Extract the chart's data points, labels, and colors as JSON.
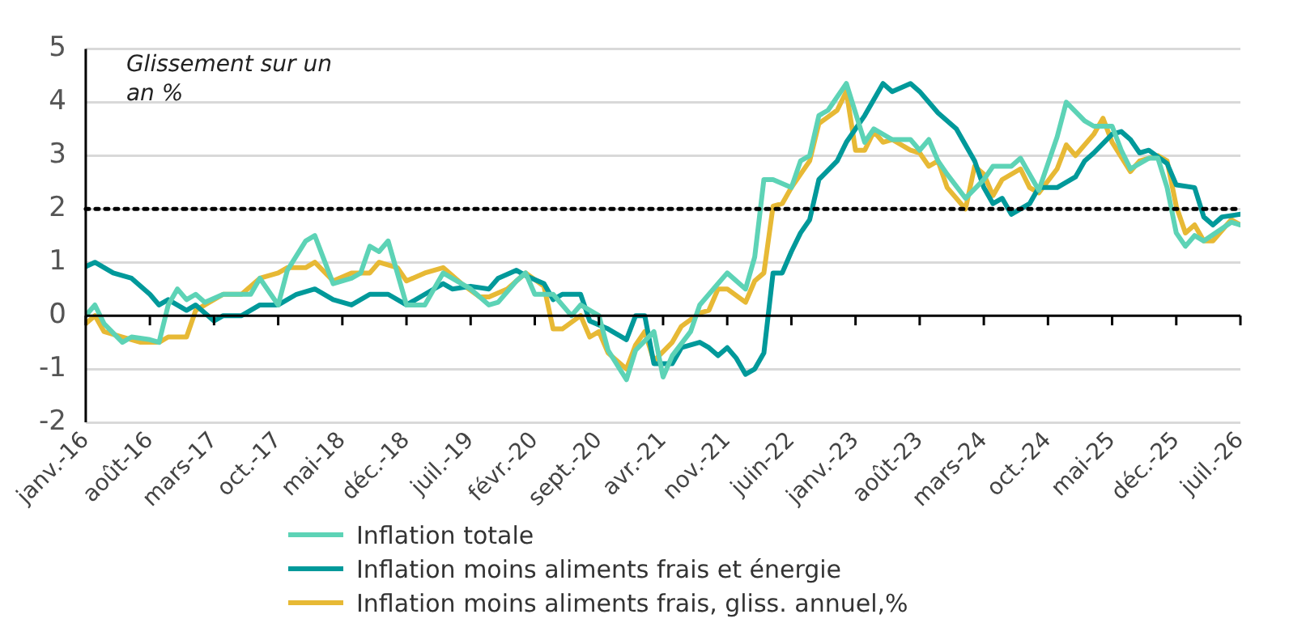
{
  "chart_data": {
    "type": "line",
    "ylabel": "Glissement sur un an %",
    "xlim": [
      "2016-01",
      "2026-07"
    ],
    "xticks": [
      {
        "value": "2016-01",
        "label": "janv.-16"
      },
      {
        "value": "2016-08",
        "label": "août-16"
      },
      {
        "value": "2017-03",
        "label": "mars-17"
      },
      {
        "value": "2017-10",
        "label": "oct.-17"
      },
      {
        "value": "2018-05",
        "label": "mai-18"
      },
      {
        "value": "2018-12",
        "label": "déc.-18"
      },
      {
        "value": "2019-07",
        "label": "juil.-19"
      },
      {
        "value": "2020-02",
        "label": "févr.-20"
      },
      {
        "value": "2020-09",
        "label": "sept.-20"
      },
      {
        "value": "2021-04",
        "label": "avr.-21"
      },
      {
        "value": "2021-11",
        "label": "nov.-21"
      },
      {
        "value": "2022-06",
        "label": "juin-22"
      },
      {
        "value": "2023-01",
        "label": "janv.-23"
      },
      {
        "value": "2023-08",
        "label": "août-23"
      },
      {
        "value": "2024-03",
        "label": "mars-24"
      },
      {
        "value": "2024-10",
        "label": "oct.-24"
      },
      {
        "value": "2025-05",
        "label": "mai-25"
      },
      {
        "value": "2025-12",
        "label": "déc.-25"
      },
      {
        "value": "2026-07",
        "label": "juil.-26"
      }
    ],
    "ylim": [
      -2,
      5
    ],
    "yticks": [
      -2,
      -1,
      0,
      1,
      2,
      3,
      4,
      5
    ],
    "grid": "y",
    "legend": "bottom",
    "marker": "none",
    "line_style": "solid",
    "ref_lines": [
      {
        "axis": "y",
        "value": 2,
        "color": "#000000",
        "line_style": "dotted"
      }
    ],
    "series": [
      {
        "name": "Inflation totale",
        "color": "#5dd3b6",
        "x": [
          "2016-01",
          "2016-02",
          "2016-03",
          "2016-05",
          "2016-06",
          "2016-08",
          "2016-09",
          "2016-10",
          "2016-11",
          "2016-12",
          "2017-01",
          "2017-02",
          "2017-04",
          "2017-07",
          "2017-08",
          "2017-10",
          "2017-11",
          "2018-01",
          "2018-02",
          "2018-04",
          "2018-06",
          "2018-07",
          "2018-08",
          "2018-09",
          "2018-10",
          "2018-11",
          "2018-12",
          "2019-02",
          "2019-04",
          "2019-06",
          "2019-07",
          "2019-09",
          "2019-10",
          "2019-12",
          "2020-01",
          "2020-02",
          "2020-04",
          "2020-06",
          "2020-07",
          "2020-09",
          "2020-10",
          "2020-12",
          "2021-01",
          "2021-03",
          "2021-04",
          "2021-05",
          "2021-07",
          "2021-08",
          "2021-10",
          "2021-11",
          "2022-01",
          "2022-02",
          "2022-03",
          "2022-04",
          "2022-06",
          "2022-07",
          "2022-08",
          "2022-09",
          "2022-10",
          "2022-12",
          "2023-02",
          "2023-03",
          "2023-05",
          "2023-07",
          "2023-08",
          "2023-09",
          "2023-10",
          "2023-11",
          "2024-01",
          "2024-03",
          "2024-04",
          "2024-06",
          "2024-07",
          "2024-09",
          "2024-11",
          "2024-12",
          "2025-02",
          "2025-03",
          "2025-05",
          "2025-06",
          "2025-07",
          "2025-09",
          "2025-10",
          "2025-11",
          "2025-12",
          "2026-01",
          "2026-02",
          "2026-03",
          "2026-06",
          "2026-07"
        ],
        "values": [
          0,
          0.2,
          -0.15,
          -0.5,
          -0.4,
          -0.45,
          -0.5,
          0.2,
          0.5,
          0.3,
          0.4,
          0.25,
          0.4,
          0.4,
          0.7,
          0.2,
          0.85,
          1.4,
          1.5,
          0.6,
          0.7,
          0.8,
          1.3,
          1.2,
          1.4,
          0.8,
          0.2,
          0.2,
          0.8,
          0.6,
          0.5,
          0.2,
          0.25,
          0.65,
          0.8,
          0.4,
          0.4,
          0,
          0.2,
          0,
          -0.65,
          -1.2,
          -0.65,
          -0.3,
          -1.15,
          -0.75,
          -0.3,
          0.2,
          0.6,
          0.8,
          0.5,
          1.1,
          2.55,
          2.55,
          2.4,
          2.9,
          3.0,
          3.75,
          3.85,
          4.35,
          3.25,
          3.5,
          3.3,
          3.3,
          3.1,
          3.3,
          2.9,
          2.65,
          2.2,
          2.55,
          2.8,
          2.8,
          2.95,
          2.35,
          3.35,
          4.0,
          3.65,
          3.55,
          3.55,
          3.1,
          2.75,
          2.95,
          2.95,
          2.4,
          1.55,
          1.3,
          1.5,
          1.4,
          1.75,
          1.7
        ]
      },
      {
        "name": "Inflation moins aliments frais et énergie",
        "color": "#00999a",
        "x": [
          "2016-01",
          "2016-02",
          "2016-04",
          "2016-06",
          "2016-08",
          "2016-09",
          "2016-10",
          "2016-12",
          "2017-01",
          "2017-03",
          "2017-04",
          "2017-06",
          "2017-08",
          "2017-10",
          "2017-12",
          "2018-02",
          "2018-04",
          "2018-06",
          "2018-08",
          "2018-10",
          "2018-12",
          "2019-02",
          "2019-04",
          "2019-05",
          "2019-07",
          "2019-09",
          "2019-10",
          "2019-12",
          "2020-01",
          "2020-03",
          "2020-04",
          "2020-05",
          "2020-07",
          "2020-08",
          "2020-10",
          "2020-12",
          "2021-01",
          "2021-02",
          "2021-03",
          "2021-05",
          "2021-06",
          "2021-08",
          "2021-09",
          "2021-10",
          "2021-11",
          "2021-12",
          "2022-01",
          "2022-02",
          "2022-03",
          "2022-04",
          "2022-05",
          "2022-06",
          "2022-07",
          "2022-08",
          "2022-09",
          "2022-11",
          "2022-12",
          "2023-02",
          "2023-04",
          "2023-05",
          "2023-07",
          "2023-08",
          "2023-10",
          "2023-12",
          "2024-02",
          "2024-03",
          "2024-04",
          "2024-05",
          "2024-06",
          "2024-08",
          "2024-09",
          "2024-11",
          "2025-01",
          "2025-02",
          "2025-03",
          "2025-05",
          "2025-06",
          "2025-07",
          "2025-08",
          "2025-09",
          "2025-11",
          "2025-12",
          "2026-02",
          "2026-03",
          "2026-04",
          "2026-05",
          "2026-07"
        ],
        "values": [
          0.92,
          1.0,
          0.8,
          0.7,
          0.4,
          0.2,
          0.3,
          0.1,
          0.2,
          -0.1,
          0,
          0,
          0.2,
          0.2,
          0.4,
          0.5,
          0.3,
          0.2,
          0.4,
          0.4,
          0.2,
          0.4,
          0.6,
          0.5,
          0.55,
          0.5,
          0.7,
          0.85,
          0.75,
          0.6,
          0.3,
          0.4,
          0.4,
          -0.1,
          -0.25,
          -0.45,
          0,
          0,
          -0.9,
          -0.9,
          -0.6,
          -0.5,
          -0.6,
          -0.75,
          -0.6,
          -0.8,
          -1.1,
          -1.0,
          -0.7,
          0.8,
          0.8,
          1.2,
          1.55,
          1.8,
          2.55,
          2.9,
          3.25,
          3.75,
          4.35,
          4.2,
          4.35,
          4.2,
          3.8,
          3.5,
          2.9,
          2.4,
          2.1,
          2.2,
          1.9,
          2.1,
          2.4,
          2.4,
          2.6,
          2.9,
          3.05,
          3.4,
          3.45,
          3.3,
          3.05,
          3.1,
          2.85,
          2.45,
          2.4,
          1.85,
          1.7,
          1.85,
          1.9
        ]
      },
      {
        "name": "Inflation moins aliments frais, gliss. annuel,%",
        "color": "#e7b935",
        "x": [
          "2016-01",
          "2016-02",
          "2016-03",
          "2016-05",
          "2016-07",
          "2016-09",
          "2016-10",
          "2016-12",
          "2017-01",
          "2017-02",
          "2017-04",
          "2017-06",
          "2017-08",
          "2017-10",
          "2017-11",
          "2018-01",
          "2018-02",
          "2018-04",
          "2018-06",
          "2018-08",
          "2018-09",
          "2018-11",
          "2018-12",
          "2019-02",
          "2019-04",
          "2019-06",
          "2019-08",
          "2019-09",
          "2019-11",
          "2020-01",
          "2020-03",
          "2020-04",
          "2020-05",
          "2020-07",
          "2020-08",
          "2020-09",
          "2020-10",
          "2020-12",
          "2021-01",
          "2021-02",
          "2021-03",
          "2021-05",
          "2021-06",
          "2021-08",
          "2021-09",
          "2021-10",
          "2021-11",
          "2022-01",
          "2022-02",
          "2022-03",
          "2022-04",
          "2022-05",
          "2022-06",
          "2022-08",
          "2022-09",
          "2022-11",
          "2022-12",
          "2023-01",
          "2023-02",
          "2023-03",
          "2023-04",
          "2023-05",
          "2023-07",
          "2023-08",
          "2023-09",
          "2023-10",
          "2023-11",
          "2024-01",
          "2024-02",
          "2024-03",
          "2024-04",
          "2024-05",
          "2024-07",
          "2024-08",
          "2024-09",
          "2024-11",
          "2024-12",
          "2025-01",
          "2025-03",
          "2025-04",
          "2025-05",
          "2025-07",
          "2025-08",
          "2025-10",
          "2025-11",
          "2025-12",
          "2026-01",
          "2026-02",
          "2026-03",
          "2026-04",
          "2026-06",
          "2026-07"
        ],
        "values": [
          -0.15,
          0,
          -0.3,
          -0.4,
          -0.5,
          -0.5,
          -0.4,
          -0.4,
          0.1,
          0.2,
          0.4,
          0.4,
          0.7,
          0.8,
          0.9,
          0.9,
          1.0,
          0.65,
          0.8,
          0.8,
          1.0,
          0.9,
          0.65,
          0.8,
          0.9,
          0.6,
          0.35,
          0.35,
          0.5,
          0.8,
          0.55,
          -0.25,
          -0.25,
          0,
          -0.4,
          -0.3,
          -0.7,
          -1.0,
          -0.55,
          -0.3,
          -0.85,
          -0.5,
          -0.2,
          0.05,
          0.1,
          0.5,
          0.5,
          0.25,
          0.65,
          0.8,
          2.05,
          2.1,
          2.4,
          2.9,
          3.6,
          3.85,
          4.2,
          3.1,
          3.1,
          3.45,
          3.25,
          3.3,
          3.1,
          3.05,
          2.8,
          2.9,
          2.4,
          2.0,
          2.8,
          2.65,
          2.25,
          2.55,
          2.75,
          2.4,
          2.3,
          2.75,
          3.2,
          3.0,
          3.4,
          3.7,
          3.25,
          2.7,
          2.9,
          3.0,
          2.9,
          2.05,
          1.55,
          1.7,
          1.4,
          1.4,
          1.8,
          1.7
        ]
      }
    ]
  }
}
